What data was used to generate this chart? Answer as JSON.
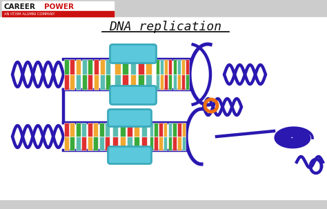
{
  "bg_color": "#e8e8e8",
  "main_bg": "#ffffff",
  "header_bg": "#cccccc",
  "dna_color": "#2a18b0",
  "helicase_color": "#5bc8dc",
  "helicase_ec": "#3aaabb",
  "base_colors": [
    "#e03030",
    "#3aaa3a",
    "#f0a830",
    "#5abcb0"
  ],
  "orange_ring_color": "#f07010",
  "title": "DNA replication",
  "title_color": "#111111",
  "logo_career_color": "#111111",
  "logo_power_color": "#cc1111",
  "logo_sub_text": "AN IIT/IIM ALUMNI COMPANY",
  "logo_sub_color": "#ffffff",
  "logo_red_bg": "#cc1111",
  "lw_strand": 3.2,
  "lw_inner": 2.0
}
